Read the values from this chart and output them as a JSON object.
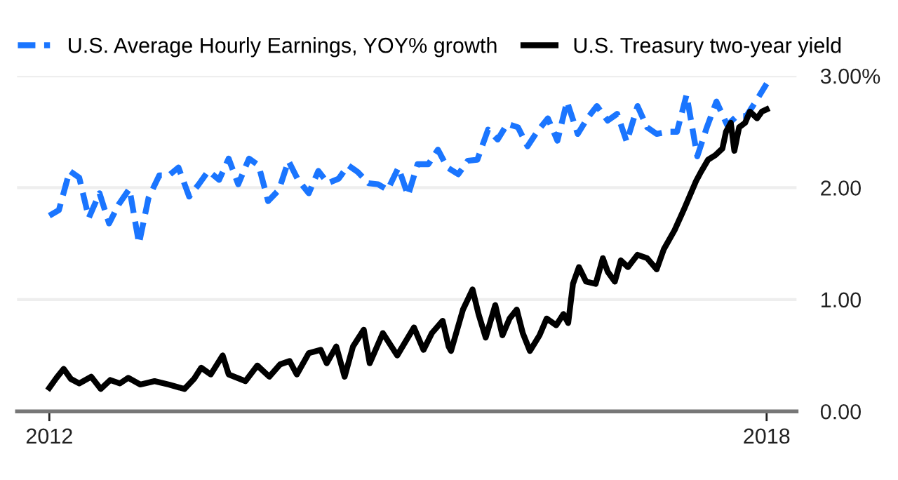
{
  "chart_data": {
    "type": "line",
    "xlim": [
      2011.73,
      2018.25
    ],
    "xticks": [
      2012,
      2018
    ],
    "ylim": [
      0,
      3
    ],
    "yticks": [
      {
        "value": 0,
        "label": "0.00"
      },
      {
        "value": 1,
        "label": "1.00"
      },
      {
        "value": 2,
        "label": "2.00"
      },
      {
        "value": 3,
        "label": "3.00%"
      }
    ],
    "grid": "y",
    "legend": "top left",
    "series": [
      {
        "name": "U.S. Average Hourly Earnings, YOY% growth",
        "color": "#1a75ff",
        "line_style": "dashed",
        "x": [
          2012.0,
          2012.08,
          2012.17,
          2012.25,
          2012.33,
          2012.42,
          2012.5,
          2012.58,
          2012.67,
          2012.75,
          2012.83,
          2012.92,
          2013.0,
          2013.08,
          2013.17,
          2013.25,
          2013.33,
          2013.42,
          2013.5,
          2013.58,
          2013.67,
          2013.75,
          2013.83,
          2013.92,
          2014.0,
          2014.08,
          2014.17,
          2014.25,
          2014.33,
          2014.42,
          2014.5,
          2014.58,
          2014.67,
          2014.75,
          2014.83,
          2014.92,
          2015.0,
          2015.08,
          2015.17,
          2015.25,
          2015.33,
          2015.42,
          2015.5,
          2015.58,
          2015.67,
          2015.75,
          2015.83,
          2015.92,
          2016.0,
          2016.08,
          2016.17,
          2016.25,
          2016.33,
          2016.42,
          2016.5,
          2016.58,
          2016.67,
          2016.75,
          2016.83,
          2016.92,
          2017.0,
          2017.08,
          2017.17,
          2017.25,
          2017.33,
          2017.42,
          2017.5,
          2017.58,
          2017.67,
          2017.75,
          2017.83,
          2017.92,
          2018.0
        ],
        "values": [
          1.75,
          1.8,
          2.15,
          2.09,
          1.73,
          1.95,
          1.68,
          1.85,
          1.99,
          1.5,
          1.91,
          2.11,
          2.11,
          2.18,
          1.92,
          2.03,
          2.15,
          2.07,
          2.26,
          2.03,
          2.26,
          2.2,
          1.88,
          1.98,
          2.24,
          2.07,
          1.95,
          2.15,
          2.04,
          2.08,
          2.2,
          2.14,
          2.04,
          2.03,
          1.98,
          2.18,
          1.93,
          2.21,
          2.21,
          2.34,
          2.18,
          2.12,
          2.24,
          2.25,
          2.52,
          2.43,
          2.57,
          2.54,
          2.37,
          2.5,
          2.62,
          2.42,
          2.77,
          2.48,
          2.62,
          2.73,
          2.6,
          2.66,
          2.41,
          2.73,
          2.54,
          2.48,
          2.5,
          2.5,
          2.83,
          2.28,
          2.54,
          2.77,
          2.56,
          2.64,
          2.64,
          2.79,
          2.93
        ]
      },
      {
        "name": "U.S. Treasury two-year yield",
        "color": "#000000",
        "line_style": "solid",
        "x": [
          2012.0,
          2012.06,
          2012.12,
          2012.18,
          2012.25,
          2012.35,
          2012.43,
          2012.51,
          2012.59,
          2012.66,
          2012.76,
          2012.88,
          2013.0,
          2013.13,
          2013.21,
          2013.27,
          2013.35,
          2013.45,
          2013.5,
          2013.64,
          2013.74,
          2013.84,
          2013.93,
          2014.01,
          2014.07,
          2014.17,
          2014.27,
          2014.32,
          2014.4,
          2014.47,
          2014.54,
          2014.63,
          2014.68,
          2014.79,
          2014.91,
          2015.05,
          2015.13,
          2015.2,
          2015.29,
          2015.34,
          2015.36,
          2015.46,
          2015.54,
          2015.59,
          2015.65,
          2015.73,
          2015.79,
          2015.85,
          2015.91,
          2015.96,
          2016.02,
          2016.1,
          2016.16,
          2016.24,
          2016.3,
          2016.34,
          2016.38,
          2016.43,
          2016.49,
          2016.57,
          2016.63,
          2016.67,
          2016.73,
          2016.78,
          2016.84,
          2016.92,
          2017.0,
          2017.08,
          2017.14,
          2017.23,
          2017.31,
          2017.41,
          2017.45,
          2017.51,
          2017.57,
          2017.63,
          2017.66,
          2017.7,
          2017.73,
          2017.77,
          2017.82,
          2017.86,
          2017.92,
          2017.96,
          2018.0
        ],
        "values": [
          0.21,
          0.3,
          0.38,
          0.29,
          0.25,
          0.31,
          0.2,
          0.28,
          0.25,
          0.3,
          0.24,
          0.27,
          0.24,
          0.2,
          0.29,
          0.39,
          0.33,
          0.5,
          0.33,
          0.27,
          0.41,
          0.31,
          0.42,
          0.45,
          0.33,
          0.52,
          0.55,
          0.43,
          0.58,
          0.31,
          0.58,
          0.73,
          0.43,
          0.7,
          0.5,
          0.75,
          0.55,
          0.7,
          0.81,
          0.58,
          0.54,
          0.91,
          1.09,
          0.87,
          0.66,
          0.95,
          0.68,
          0.83,
          0.91,
          0.7,
          0.54,
          0.68,
          0.83,
          0.77,
          0.87,
          0.79,
          1.14,
          1.29,
          1.16,
          1.14,
          1.37,
          1.25,
          1.16,
          1.35,
          1.29,
          1.4,
          1.37,
          1.27,
          1.45,
          1.62,
          1.81,
          2.06,
          2.14,
          2.25,
          2.29,
          2.35,
          2.5,
          2.58,
          2.33,
          2.54,
          2.58,
          2.68,
          2.62,
          2.68,
          2.7
        ]
      }
    ]
  }
}
